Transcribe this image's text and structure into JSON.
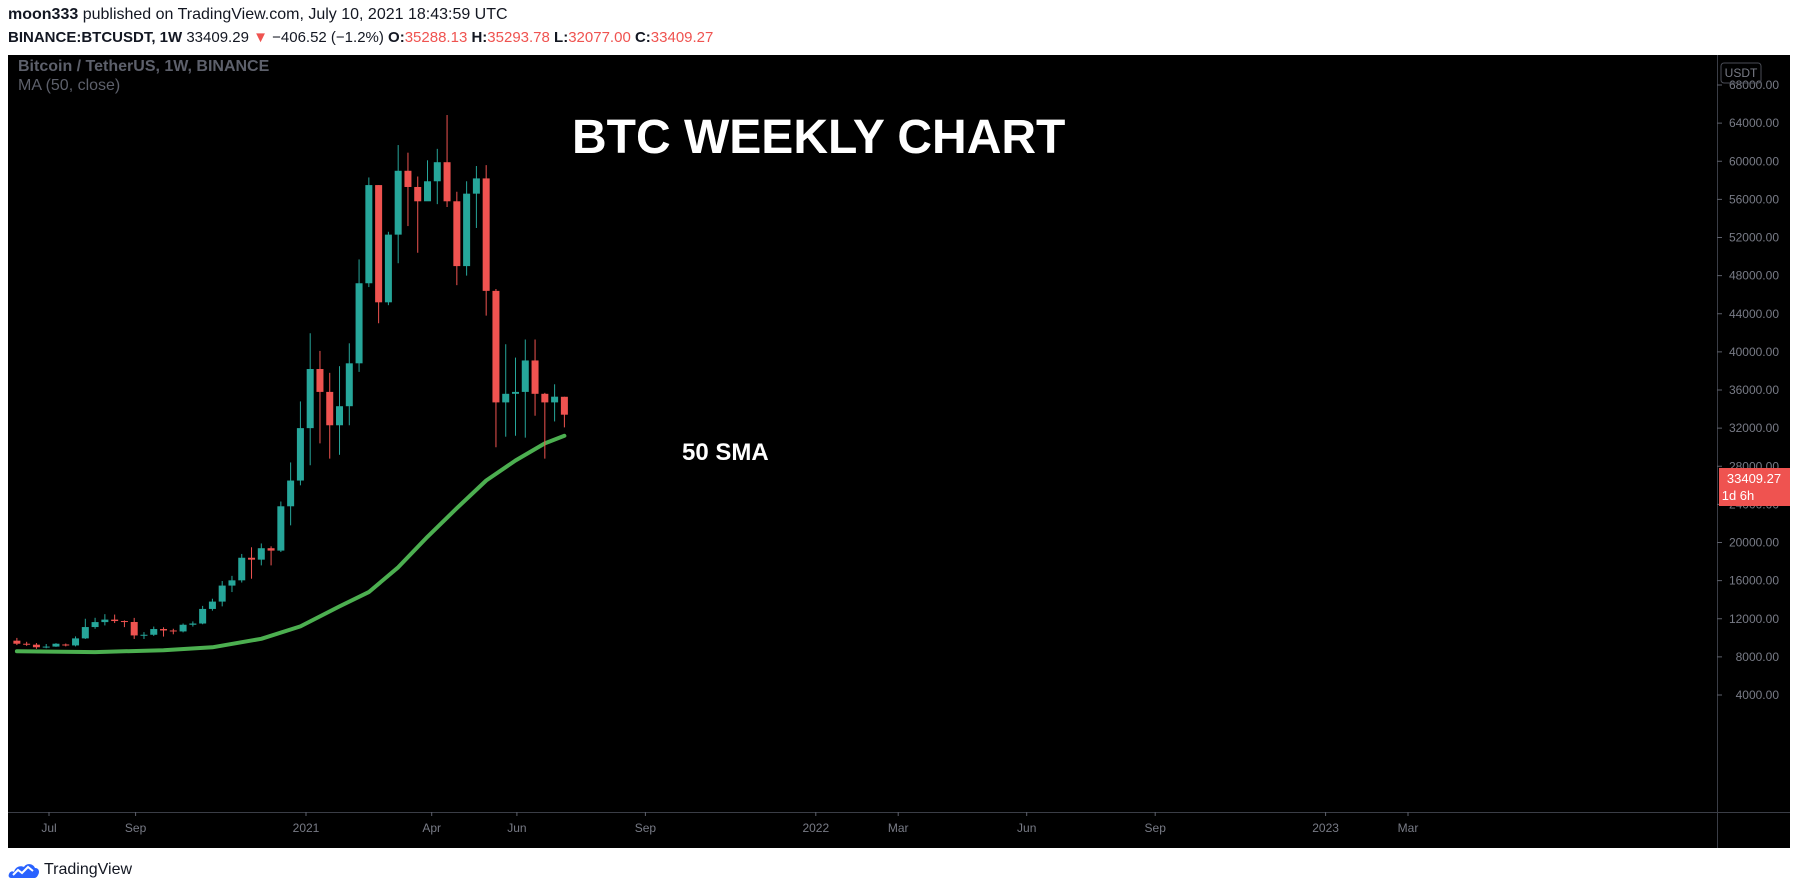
{
  "header": {
    "author": "moon333",
    "published_text": "published on TradingView.com, July 10, 2021 18:43:59 UTC",
    "symbol": "BINANCE:BTCUSDT, 1W",
    "last": "33409.29",
    "change_arrow": "▼",
    "change": "−406.52 (−1.2%)",
    "o_label": "O:",
    "o_value": "35288.13",
    "h_label": "H:",
    "h_value": "35293.78",
    "l_label": "L:",
    "l_value": "32077.00",
    "c_label": "C:",
    "c_value": "33409.27"
  },
  "chart_legend": {
    "title": "Bitcoin / TetherUS, 1W, BINANCE",
    "indicator": "MA (50, close)"
  },
  "annotations": {
    "main_title": "BTC WEEKLY CHART",
    "sma_label": "50 SMA"
  },
  "price_badge": {
    "price": "33409.27",
    "countdown": "1d 6h",
    "color": "#ef5350"
  },
  "currency_button": "USDT",
  "footer": {
    "brand": "TradingView"
  },
  "colors": {
    "up": "#26a69a",
    "down": "#ef5350",
    "sma": "#4caf50",
    "background": "#000000"
  },
  "chart_data": {
    "type": "candlestick",
    "ylim": [
      2000,
      70000
    ],
    "y_ticks": [
      "68000.00",
      "64000.00",
      "60000.00",
      "56000.00",
      "52000.00",
      "48000.00",
      "44000.00",
      "40000.00",
      "36000.00",
      "32000.00",
      "28000.00",
      "24000.00",
      "20000.00",
      "16000.00",
      "12000.00",
      "8000.00",
      "4000.00"
    ],
    "y_tick_values": [
      68000,
      64000,
      60000,
      56000,
      52000,
      48000,
      44000,
      40000,
      36000,
      32000,
      28000,
      24000,
      20000,
      16000,
      12000,
      8000,
      4000
    ],
    "x_labels": [
      {
        "label": "Jul",
        "date": "2020-07-01"
      },
      {
        "label": "Sep",
        "date": "2020-09-01"
      },
      {
        "label": "2021",
        "date": "2021-01-01"
      },
      {
        "label": "Apr",
        "date": "2021-04-01"
      },
      {
        "label": "Jun",
        "date": "2021-06-01"
      },
      {
        "label": "Sep",
        "date": "2021-09-01"
      },
      {
        "label": "2022",
        "date": "2022-01-01"
      },
      {
        "label": "Mar",
        "date": "2022-03-01"
      },
      {
        "label": "Jun",
        "date": "2022-06-01"
      },
      {
        "label": "Sep",
        "date": "2022-09-01"
      },
      {
        "label": "2023",
        "date": "2023-01-01"
      },
      {
        "label": "Mar",
        "date": "2023-03-01"
      }
    ],
    "candles": [
      {
        "date": "2020-06-08",
        "o": 9700,
        "h": 9990,
        "l": 9240,
        "c": 9380
      },
      {
        "date": "2020-06-15",
        "o": 9380,
        "h": 9580,
        "l": 9160,
        "c": 9280
      },
      {
        "date": "2020-06-22",
        "o": 9280,
        "h": 9450,
        "l": 8840,
        "c": 9010
      },
      {
        "date": "2020-06-29",
        "o": 9010,
        "h": 9350,
        "l": 8900,
        "c": 9080
      },
      {
        "date": "2020-07-06",
        "o": 9080,
        "h": 9440,
        "l": 9050,
        "c": 9380
      },
      {
        "date": "2020-07-13",
        "o": 9300,
        "h": 9400,
        "l": 9100,
        "c": 9200
      },
      {
        "date": "2020-07-20",
        "o": 9200,
        "h": 10150,
        "l": 9100,
        "c": 9940
      },
      {
        "date": "2020-07-27",
        "o": 9940,
        "h": 12000,
        "l": 9880,
        "c": 11130
      },
      {
        "date": "2020-08-03",
        "o": 11130,
        "h": 12100,
        "l": 10950,
        "c": 11650
      },
      {
        "date": "2020-08-10",
        "o": 11650,
        "h": 12480,
        "l": 11300,
        "c": 11910
      },
      {
        "date": "2020-08-17",
        "o": 11910,
        "h": 12440,
        "l": 11550,
        "c": 11760
      },
      {
        "date": "2020-08-24",
        "o": 11760,
        "h": 11830,
        "l": 11120,
        "c": 11660
      },
      {
        "date": "2020-08-31",
        "o": 11660,
        "h": 12090,
        "l": 9880,
        "c": 10250
      },
      {
        "date": "2020-09-07",
        "o": 10250,
        "h": 10600,
        "l": 9880,
        "c": 10320
      },
      {
        "date": "2020-09-14",
        "o": 10320,
        "h": 11180,
        "l": 10200,
        "c": 10920
      },
      {
        "date": "2020-09-21",
        "o": 10920,
        "h": 11100,
        "l": 10130,
        "c": 10770
      },
      {
        "date": "2020-09-28",
        "o": 10770,
        "h": 10950,
        "l": 10370,
        "c": 10670
      },
      {
        "date": "2020-10-05",
        "o": 10670,
        "h": 11500,
        "l": 10570,
        "c": 11370
      },
      {
        "date": "2020-10-12",
        "o": 11370,
        "h": 11720,
        "l": 11180,
        "c": 11500
      },
      {
        "date": "2020-10-19",
        "o": 11500,
        "h": 13350,
        "l": 11420,
        "c": 13030
      },
      {
        "date": "2020-10-26",
        "o": 13030,
        "h": 14100,
        "l": 12850,
        "c": 13800
      },
      {
        "date": "2020-11-02",
        "o": 13800,
        "h": 15960,
        "l": 13300,
        "c": 15480
      },
      {
        "date": "2020-11-09",
        "o": 15480,
        "h": 16500,
        "l": 14800,
        "c": 16030
      },
      {
        "date": "2020-11-16",
        "o": 16030,
        "h": 18800,
        "l": 15800,
        "c": 18400
      },
      {
        "date": "2020-11-23",
        "o": 18400,
        "h": 19500,
        "l": 16200,
        "c": 18200
      },
      {
        "date": "2020-11-30",
        "o": 18200,
        "h": 19900,
        "l": 17600,
        "c": 19400
      },
      {
        "date": "2020-12-07",
        "o": 19400,
        "h": 19600,
        "l": 17600,
        "c": 19150
      },
      {
        "date": "2020-12-14",
        "o": 19150,
        "h": 24300,
        "l": 19000,
        "c": 23800
      },
      {
        "date": "2020-12-21",
        "o": 23800,
        "h": 28400,
        "l": 21800,
        "c": 26500
      },
      {
        "date": "2020-12-28",
        "o": 26500,
        "h": 34800,
        "l": 26000,
        "c": 32000
      },
      {
        "date": "2021-01-04",
        "o": 32000,
        "h": 41950,
        "l": 28100,
        "c": 38200
      },
      {
        "date": "2021-01-11",
        "o": 38200,
        "h": 40100,
        "l": 30400,
        "c": 35800
      },
      {
        "date": "2021-01-18",
        "o": 35800,
        "h": 37800,
        "l": 28800,
        "c": 32300
      },
      {
        "date": "2021-01-25",
        "o": 32300,
        "h": 38500,
        "l": 29200,
        "c": 34300
      },
      {
        "date": "2021-02-01",
        "o": 34300,
        "h": 40900,
        "l": 32300,
        "c": 38800
      },
      {
        "date": "2021-02-08",
        "o": 38800,
        "h": 49700,
        "l": 37900,
        "c": 47200
      },
      {
        "date": "2021-02-15",
        "o": 47200,
        "h": 58300,
        "l": 46800,
        "c": 57500
      },
      {
        "date": "2021-02-22",
        "o": 57500,
        "h": 57500,
        "l": 43000,
        "c": 45200
      },
      {
        "date": "2021-03-01",
        "o": 45200,
        "h": 52600,
        "l": 44900,
        "c": 52300
      },
      {
        "date": "2021-03-08",
        "o": 52300,
        "h": 61700,
        "l": 49300,
        "c": 59000
      },
      {
        "date": "2021-03-15",
        "o": 59000,
        "h": 60900,
        "l": 53200,
        "c": 57300
      },
      {
        "date": "2021-03-22",
        "o": 57300,
        "h": 58400,
        "l": 50400,
        "c": 55800
      },
      {
        "date": "2021-03-29",
        "o": 55800,
        "h": 60100,
        "l": 56300,
        "c": 57900
      },
      {
        "date": "2021-04-05",
        "o": 57900,
        "h": 61300,
        "l": 55500,
        "c": 59900
      },
      {
        "date": "2021-04-12",
        "o": 59900,
        "h": 64850,
        "l": 55200,
        "c": 55800
      },
      {
        "date": "2021-04-19",
        "o": 55800,
        "h": 56800,
        "l": 47000,
        "c": 49000
      },
      {
        "date": "2021-04-26",
        "o": 49000,
        "h": 57900,
        "l": 48000,
        "c": 56600
      },
      {
        "date": "2021-05-03",
        "o": 56600,
        "h": 59500,
        "l": 53000,
        "c": 58200
      },
      {
        "date": "2021-05-10",
        "o": 58200,
        "h": 59600,
        "l": 43800,
        "c": 46400
      },
      {
        "date": "2021-05-17",
        "o": 46400,
        "h": 46600,
        "l": 30000,
        "c": 34700
      },
      {
        "date": "2021-05-24",
        "o": 34700,
        "h": 40800,
        "l": 31100,
        "c": 35600
      },
      {
        "date": "2021-05-31",
        "o": 35600,
        "h": 39400,
        "l": 31200,
        "c": 35800
      },
      {
        "date": "2021-06-07",
        "o": 35800,
        "h": 41300,
        "l": 31000,
        "c": 39100
      },
      {
        "date": "2021-06-14",
        "o": 39100,
        "h": 41300,
        "l": 33300,
        "c": 35600
      },
      {
        "date": "2021-06-21",
        "o": 35600,
        "h": 35700,
        "l": 28800,
        "c": 34700
      },
      {
        "date": "2021-06-28",
        "o": 34700,
        "h": 36600,
        "l": 32700,
        "c": 35300
      },
      {
        "date": "2021-07-05",
        "o": 35288.13,
        "h": 35293.78,
        "l": 32077.0,
        "c": 33409.27
      }
    ],
    "sma_50": [
      {
        "date": "2020-06-08",
        "v": 8600
      },
      {
        "date": "2020-08-03",
        "v": 8500
      },
      {
        "date": "2020-09-21",
        "v": 8700
      },
      {
        "date": "2020-10-26",
        "v": 9000
      },
      {
        "date": "2020-11-30",
        "v": 9900
      },
      {
        "date": "2020-12-28",
        "v": 11200
      },
      {
        "date": "2021-01-25",
        "v": 13300
      },
      {
        "date": "2021-02-15",
        "v": 14800
      },
      {
        "date": "2021-03-08",
        "v": 17400
      },
      {
        "date": "2021-03-29",
        "v": 20600
      },
      {
        "date": "2021-04-19",
        "v": 23600
      },
      {
        "date": "2021-05-10",
        "v": 26500
      },
      {
        "date": "2021-05-31",
        "v": 28600
      },
      {
        "date": "2021-06-21",
        "v": 30400
      },
      {
        "date": "2021-07-05",
        "v": 31200
      }
    ]
  }
}
